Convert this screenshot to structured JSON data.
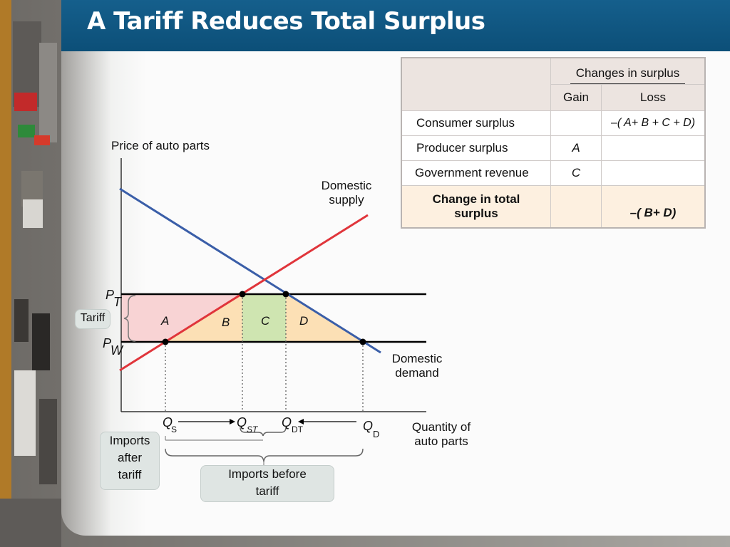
{
  "slide": {
    "title": "A Tariff Reduces Total Surplus"
  },
  "table": {
    "group_header": "Changes in surplus",
    "gain_header": "Gain",
    "loss_header": "Loss",
    "rows": [
      {
        "label": "Consumer surplus",
        "gain": "",
        "loss": "–( A+ B + C + D)"
      },
      {
        "label": "Producer surplus",
        "gain": "A",
        "loss": ""
      },
      {
        "label": "Government revenue",
        "gain": "C",
        "loss": ""
      },
      {
        "label_line1": "Change in total",
        "label_line2": "surplus",
        "gain": "",
        "loss": "–( B+ D)"
      }
    ]
  },
  "chart_data": {
    "type": "supply-demand diagram",
    "ylabel": "Price of auto parts",
    "xlabel_line1": "Quantity of",
    "xlabel_line2": "auto parts",
    "curves": {
      "supply_line1": "Domestic",
      "supply_line2": "supply",
      "demand_line1": "Domestic",
      "demand_line2": "demand"
    },
    "prices": {
      "pt_main": "P",
      "pt_sub": "T",
      "pw_main": "P",
      "pw_sub": "W"
    },
    "quantities": {
      "qs_main": "Q",
      "qs_sub": "S",
      "qst_main": "Q",
      "qst_sub": "ST",
      "qdt_main": "Q",
      "qdt_sub": "DT",
      "qd_main": "Q",
      "qd_sub": "D"
    },
    "areas": [
      "A",
      "B",
      "C",
      "D"
    ],
    "area_colors": {
      "A": "#f8d3d4",
      "B": "#fce0b5",
      "C": "#cfe5b1",
      "D": "#fce0b5"
    },
    "tariff_label": "Tariff",
    "imports_after_line1": "Imports",
    "imports_after_line2": "after",
    "imports_after_line3": "tariff",
    "imports_before_line1": "Imports before",
    "imports_before_line2": "tariff",
    "supply_color": "#e0353b",
    "demand_color": "#3a5ea8"
  }
}
